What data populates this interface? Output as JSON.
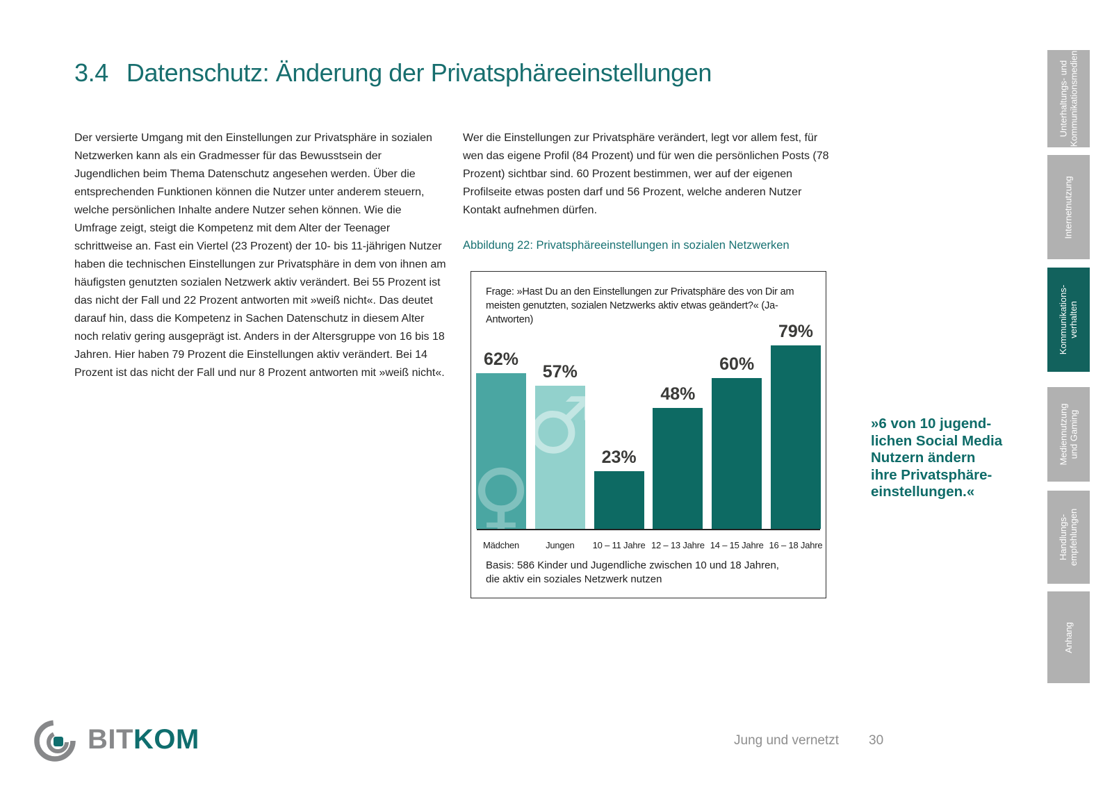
{
  "page": {
    "section_number": "3.4",
    "title": "Datenschutz: Änderung der Privatsphäreeinstellungen"
  },
  "columns": {
    "left": "Der versierte Umgang mit den Einstellungen zur Privatsphäre in sozialen Netzwerken kann als ein Gradmesser für das Bewusstsein der Jugendlichen beim Thema Datenschutz angesehen werden. Über die entsprechenden Funktionen können die Nutzer unter anderem steuern, welche persönlichen Inhalte andere Nutzer sehen können. Wie die Umfrage zeigt, steigt die Kompetenz mit dem Alter der Teenager schrittweise an. Fast ein Viertel (23 Prozent) der 10- bis 11-jährigen Nutzer haben die technischen Einstellungen zur Privatsphäre in dem von ihnen am häufigsten genutzten sozialen Netzwerk aktiv verändert. Bei 55 Prozent ist das nicht der Fall und 22 Prozent antworten mit »weiß nicht«. Das deutet darauf hin, dass die Kompetenz in Sachen Datenschutz in diesem Alter noch relativ gering ausgeprägt ist. Anders in der Altersgruppe von 16 bis 18 Jahren. Hier haben 79 Prozent die Einstellungen aktiv verändert. Bei 14 Prozent ist das nicht der Fall und nur 8 Prozent antworten mit »weiß nicht«.",
    "right": "Wer die Einstellungen zur Privatsphäre verändert, legt vor allem fest, für wen das eigene Profil (84 Prozent) und für wen die persönlichen Posts (78 Prozent) sichtbar sind. 60 Prozent bestimmen, wer auf der eigenen Profilseite etwas posten darf und 56 Prozent, welche anderen Nutzer Kontakt aufnehmen dürfen."
  },
  "figure": {
    "caption": "Abbildung 22: Privatsphäreeinstellungen in sozialen Netzwerken",
    "question": "Frage: »Hast Du an den Einstellungen zur Privatsphäre des von Dir am meisten genutzten, sozialen Netzwerks aktiv etwas geändert?« (Ja-Antworten)",
    "basis": "Basis: 586 Kinder und Jugendliche zwischen 10 und 18 Jahren,\ndie aktiv ein soziales Netzwerk nutzen"
  },
  "chart_data": {
    "type": "bar",
    "title": "Privatsphäreeinstellungen in sozialen Netzwerken",
    "categories": [
      "Mädchen",
      "Jungen",
      "10 – 11 Jahre",
      "12 – 13 Jahre",
      "14 – 15 Jahre",
      "16 – 18 Jahre"
    ],
    "values": [
      62,
      57,
      23,
      48,
      60,
      79
    ],
    "value_labels": [
      "62%",
      "57%",
      "23%",
      "48%",
      "60%",
      "79%"
    ],
    "unit": "%",
    "ylim": [
      0,
      100
    ],
    "grid": false,
    "legend": "none",
    "bar_colors": [
      "#4aa6a2",
      "#92d1cc",
      "#0d6a63",
      "#0d6a63",
      "#0d6a63",
      "#0d6a63"
    ],
    "icons": [
      "venus-icon",
      "mars-icon",
      null,
      null,
      null,
      null
    ],
    "icon_glyphs": {
      "venus-icon": "♀",
      "mars-icon": "♂"
    }
  },
  "quote": "»6 von 10 jugend-\nlichen Social Media\nNutzern ändern\nihre Privatsphäre-\neinstellungen.«",
  "sidebar": {
    "tabs": [
      {
        "label": "Unterhaltungs- und\nKommunikationsmedien",
        "active": false
      },
      {
        "label": "Internetnutzung",
        "active": false
      },
      {
        "label": "Kommunikations-\nverhalten",
        "active": true
      },
      {
        "label": "Mediennutzung\nund Gaming",
        "active": false
      },
      {
        "label": "Handlungs-\nempfehlungen",
        "active": false
      },
      {
        "label": "Anhang",
        "active": false
      }
    ]
  },
  "footer": {
    "logo_bit": "BIT",
    "logo_kom": "KOM",
    "booklet_title": "Jung und vernetzt",
    "page_number": "30"
  },
  "colors": {
    "accent_teal": "#176e6e",
    "quote_teal": "#0e6b68",
    "bar_dark": "#0d6a63",
    "bar_girls": "#4aa6a2",
    "bar_boys": "#92d1cc",
    "sidebar_gray": "#b1b1b1",
    "sidebar_active": "#12625d",
    "footer_gray": "#8e8e8e",
    "logo_gray": "#87888a",
    "body_text": "#232323"
  }
}
